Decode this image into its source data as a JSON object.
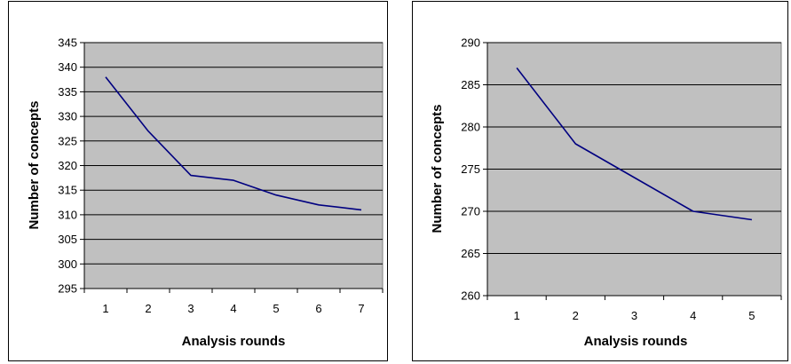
{
  "chart_data": [
    {
      "type": "line",
      "title": "",
      "xlabel": "Analysis rounds",
      "ylabel": "Number of concepts",
      "x": [
        1,
        2,
        3,
        4,
        5,
        6,
        7
      ],
      "ylim": [
        295,
        345
      ],
      "yticks": [
        345,
        340,
        335,
        330,
        325,
        320,
        315,
        310,
        305,
        300,
        295
      ],
      "series": [
        {
          "values": [
            338,
            327,
            318,
            317,
            314,
            312,
            311
          ]
        }
      ],
      "grid": true,
      "legend": "none",
      "colors": {
        "plot_bg": "#c0c0c0",
        "line": "#000080",
        "grid": "#000000"
      }
    },
    {
      "type": "line",
      "title": "",
      "xlabel": "Analysis rounds",
      "ylabel": "Number of concepts",
      "x": [
        1,
        2,
        3,
        4,
        5
      ],
      "ylim": [
        260,
        290
      ],
      "yticks": [
        290,
        285,
        280,
        275,
        270,
        265,
        260
      ],
      "series": [
        {
          "values": [
            287,
            278,
            274,
            270,
            269
          ]
        }
      ],
      "grid": true,
      "legend": "none",
      "colors": {
        "plot_bg": "#c0c0c0",
        "line": "#000080",
        "grid": "#000000"
      }
    }
  ]
}
